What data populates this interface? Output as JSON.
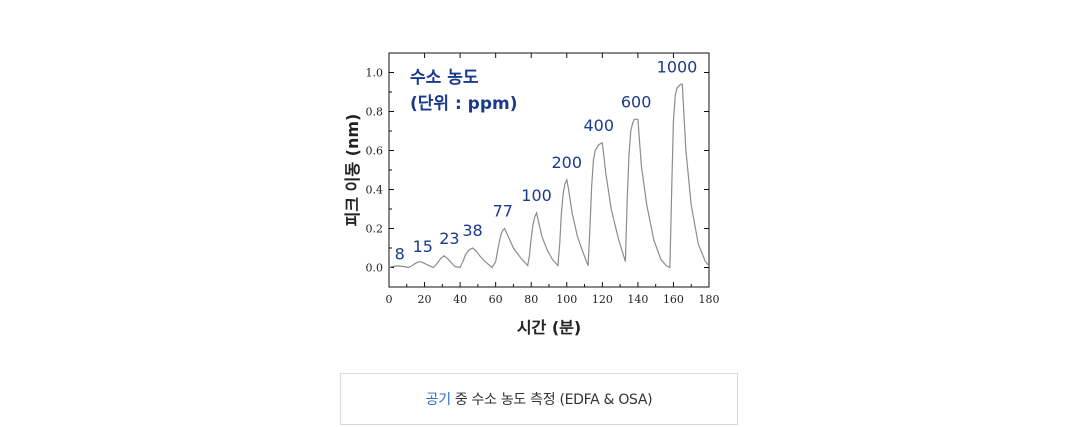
{
  "chart_data": {
    "type": "line",
    "xlabel": "시간 (분)",
    "ylabel": "피크 이동 (nm)",
    "xlim": [
      0,
      180
    ],
    "ylim": [
      -0.1,
      1.1
    ],
    "xticks": [
      0,
      20,
      40,
      60,
      80,
      100,
      120,
      140,
      160,
      180
    ],
    "yticks": [
      0.0,
      0.2,
      0.4,
      0.6,
      0.8,
      1.0
    ],
    "xtick_labels": [
      "0",
      "20",
      "40",
      "60",
      "80",
      "100",
      "120",
      "140",
      "160",
      "180"
    ],
    "ytick_labels": [
      "0.0",
      "0.2",
      "0.4",
      "0.6",
      "0.8",
      "1.0"
    ],
    "legend_title": [
      "수소 농도",
      "(단위 : ppm)"
    ],
    "line_color": "#8c8c8c",
    "label_color": "#1a3a8c",
    "grid": false,
    "series": [
      {
        "x": [
          0,
          2,
          5,
          8,
          11,
          13,
          15,
          17,
          19,
          22,
          25,
          27,
          29,
          31,
          33,
          35,
          37,
          40,
          42,
          43,
          45,
          47,
          49,
          51,
          54,
          58,
          60,
          61,
          62,
          63,
          64,
          65,
          67,
          70,
          74,
          78,
          79,
          80,
          81,
          82,
          83,
          84,
          86,
          89,
          92,
          95,
          96,
          97,
          98,
          99,
          100,
          101,
          103,
          106,
          109,
          112,
          113,
          114,
          115,
          116,
          118,
          120,
          122,
          125,
          129,
          133,
          134,
          135,
          136,
          137,
          138,
          140,
          142,
          145,
          149,
          153,
          156,
          158,
          159,
          160,
          161,
          162,
          163,
          164,
          165,
          167,
          170,
          174,
          178,
          180
        ],
        "y": [
          0.0,
          0.005,
          0.008,
          0.005,
          0.0,
          0.01,
          0.022,
          0.03,
          0.025,
          0.012,
          0.0,
          0.02,
          0.045,
          0.06,
          0.045,
          0.025,
          0.005,
          0.0,
          0.04,
          0.065,
          0.09,
          0.1,
          0.085,
          0.06,
          0.03,
          0.0,
          0.03,
          0.08,
          0.13,
          0.17,
          0.19,
          0.2,
          0.16,
          0.1,
          0.05,
          0.01,
          0.06,
          0.15,
          0.22,
          0.26,
          0.28,
          0.24,
          0.16,
          0.09,
          0.04,
          0.01,
          0.12,
          0.28,
          0.38,
          0.43,
          0.45,
          0.4,
          0.28,
          0.16,
          0.08,
          0.01,
          0.2,
          0.42,
          0.55,
          0.6,
          0.63,
          0.64,
          0.48,
          0.3,
          0.15,
          0.03,
          0.35,
          0.58,
          0.7,
          0.74,
          0.76,
          0.76,
          0.52,
          0.32,
          0.14,
          0.04,
          0.01,
          0.0,
          0.4,
          0.75,
          0.88,
          0.92,
          0.93,
          0.94,
          0.94,
          0.6,
          0.32,
          0.12,
          0.03,
          0.01
        ]
      }
    ],
    "annotations": [
      {
        "text": "8",
        "x": 6,
        "y": 0.02
      },
      {
        "text": "15",
        "x": 19,
        "y": 0.06
      },
      {
        "text": "23",
        "x": 34,
        "y": 0.1
      },
      {
        "text": "38",
        "x": 47,
        "y": 0.14
      },
      {
        "text": "77",
        "x": 64,
        "y": 0.24
      },
      {
        "text": "100",
        "x": 83,
        "y": 0.32
      },
      {
        "text": "200",
        "x": 100,
        "y": 0.49
      },
      {
        "text": "400",
        "x": 118,
        "y": 0.68
      },
      {
        "text": "600",
        "x": 139,
        "y": 0.8
      },
      {
        "text": "1000",
        "x": 162,
        "y": 0.98
      }
    ]
  },
  "caption": {
    "accent": "공기",
    "text": "중 수소 농도 측정 (EDFA & OSA)"
  }
}
